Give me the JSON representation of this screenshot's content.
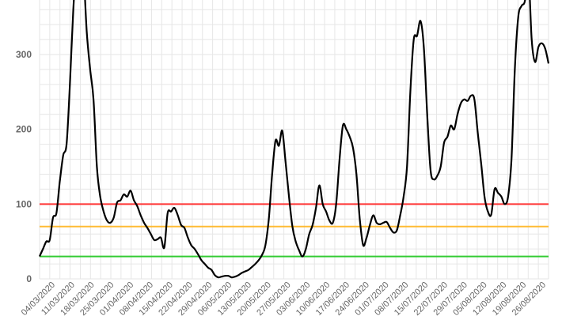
{
  "chart_data": {
    "type": "line",
    "title": "",
    "xlabel": "",
    "ylabel": "",
    "ylim": [
      0,
      400
    ],
    "grid": true,
    "legend": "none",
    "y_ticks": [
      "0",
      "100",
      "200",
      "300"
    ],
    "x_ticks": [
      "04/03/2020",
      "11/03/2020",
      "18/03/2020",
      "25/03/2020",
      "01/04/2020",
      "08/04/2020",
      "15/04/2020",
      "22/04/2020",
      "29/04/2020",
      "06/05/2020",
      "13/05/2020",
      "20/05/2020",
      "27/05/2020",
      "03/06/2020",
      "10/06/2020",
      "17/06/2020",
      "24/06/2020",
      "01/07/2020",
      "08/07/2020",
      "15/07/2020",
      "22/07/2020",
      "29/07/2020",
      "05/08/2020",
      "12/08/2020",
      "19/08/2020",
      "26/08/2020"
    ],
    "thresholds": [
      {
        "value": 100,
        "color": "#ff3333"
      },
      {
        "value": 70,
        "color": "#ffbb33"
      },
      {
        "value": 30,
        "color": "#33cc33"
      }
    ],
    "series_color": "#000000",
    "series": [
      {
        "values": [
          30,
          40,
          50,
          52,
          82,
          88,
          130,
          165,
          180,
          260,
          360,
          420,
          420,
          410,
          330,
          280,
          240,
          150,
          110,
          90,
          78,
          75,
          82,
          102,
          105,
          113,
          110,
          118,
          105,
          97,
          85,
          75,
          68,
          60,
          52,
          53,
          55,
          42,
          88,
          90,
          95,
          85,
          72,
          68,
          55,
          45,
          40,
          33,
          25,
          20,
          15,
          12,
          5,
          2,
          3,
          4,
          4,
          2,
          3,
          5,
          8,
          10,
          12,
          16,
          20,
          25,
          32,
          45,
          80,
          140,
          185,
          178,
          198,
          155,
          110,
          70,
          50,
          38,
          30,
          40,
          60,
          72,
          95,
          125,
          100,
          90,
          78,
          75,
          100,
          160,
          205,
          200,
          190,
          175,
          140,
          80,
          45,
          55,
          72,
          85,
          75,
          73,
          75,
          76,
          68,
          62,
          65,
          85,
          110,
          150,
          250,
          320,
          325,
          345,
          310,
          220,
          145,
          133,
          138,
          150,
          182,
          190,
          205,
          200,
          220,
          235,
          240,
          238,
          245,
          240,
          195,
          155,
          110,
          90,
          86,
          120,
          115,
          110,
          100,
          110,
          160,
          280,
          350,
          365,
          372,
          410,
          320,
          290,
          310,
          315,
          308,
          288
        ]
      }
    ]
  }
}
